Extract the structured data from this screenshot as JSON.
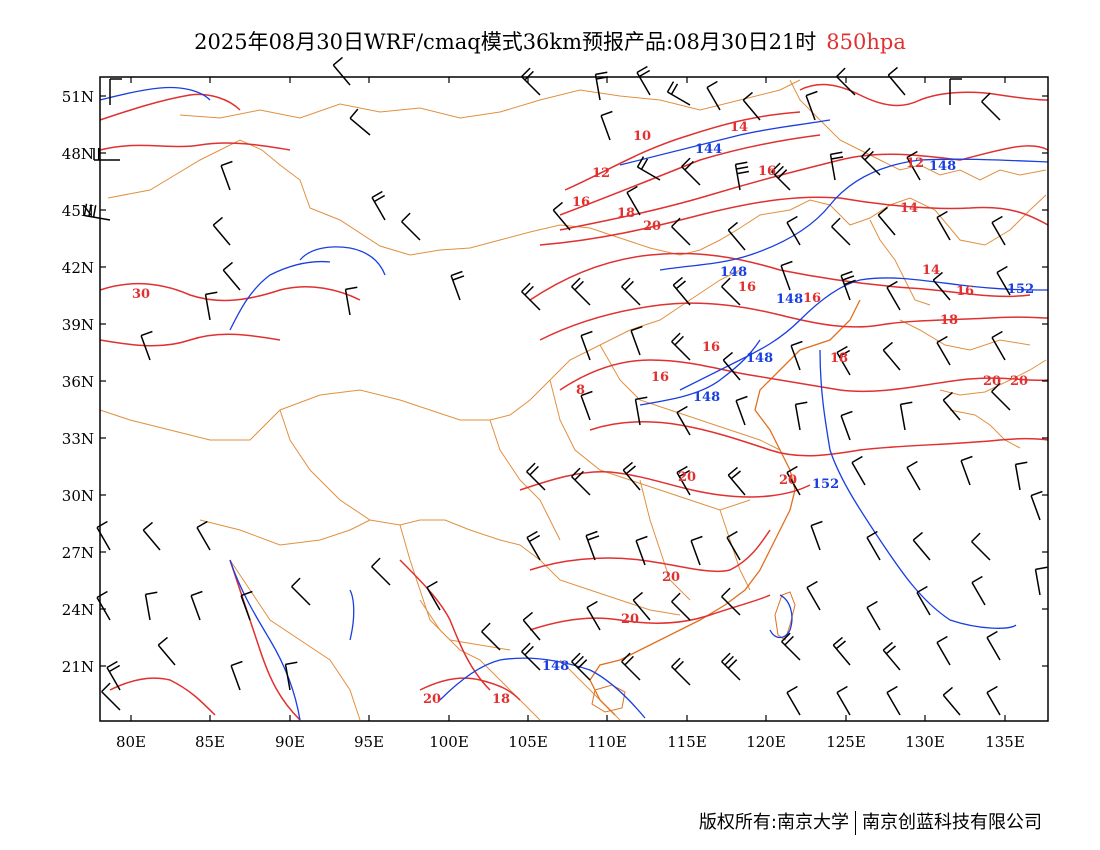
{
  "header": {
    "title": "2025年08月30日WRF/cmaq模式36km预报产品:08月30日21时",
    "level": "850hpa"
  },
  "axes": {
    "lat_labels": [
      "51N",
      "48N",
      "45N",
      "42N",
      "39N",
      "36N",
      "33N",
      "30N",
      "27N",
      "24N",
      "21N"
    ],
    "lon_labels": [
      "80E",
      "85E",
      "90E",
      "95E",
      "100E",
      "105E",
      "110E",
      "115E",
      "120E",
      "125E",
      "130E",
      "135E"
    ]
  },
  "temperature_labels": [
    "10",
    "12",
    "14",
    "16",
    "16",
    "18",
    "20",
    "30",
    "12",
    "14",
    "14",
    "16",
    "16",
    "16",
    "18",
    "18",
    "16",
    "16",
    "20",
    "20",
    "20",
    "20",
    "20",
    "20",
    "20",
    "18",
    "8"
  ],
  "height_labels": [
    "144",
    "148",
    "148",
    "148",
    "148",
    "148",
    "152",
    "152",
    "148"
  ],
  "colors": {
    "temperature": "#e03030",
    "height": "#1a3fe0",
    "border": "#e09040",
    "wind": "#000000"
  },
  "footer": {
    "owner_left": "版权所有:南京大学",
    "owner_right": "南京创蓝科技有限公司"
  }
}
